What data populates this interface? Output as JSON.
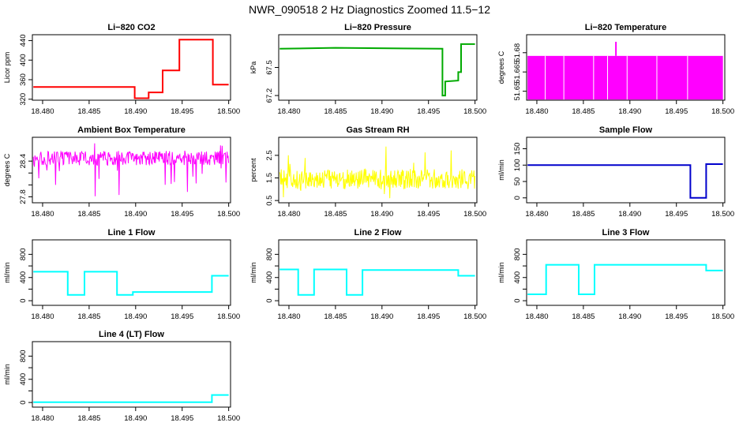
{
  "figure": {
    "title": "NWR_090518  2 Hz Diagnostics Zoomed 11.5−12"
  },
  "chart_data": [
    {
      "type": "line",
      "title": "Li−820 CO2",
      "ylabel": "Licor ppm",
      "xlabel": "",
      "color": "#ff0000",
      "xlim": [
        18.4789,
        18.5002
      ],
      "ylim": [
        318,
        452
      ],
      "xticks": [
        18.48,
        18.485,
        18.49,
        18.495,
        18.5
      ],
      "xtick_labels": [
        "18.480",
        "18.485",
        "18.490",
        "18.495",
        "18.500"
      ],
      "yticks": [
        320,
        360,
        400,
        440
      ],
      "ytick_labels": [
        "320",
        "360",
        "400",
        "440"
      ],
      "x": [
        18.479,
        18.48,
        18.485,
        18.4899,
        18.4899,
        18.4914,
        18.4914,
        18.4929,
        18.4929,
        18.4947,
        18.4947,
        18.4983,
        18.4983,
        18.5
      ],
      "y": [
        345,
        345,
        345,
        345,
        322,
        322,
        334,
        334,
        379,
        379,
        442,
        442,
        350,
        350
      ]
    },
    {
      "type": "line",
      "title": "Li−820 Pressure",
      "ylabel": "kPa",
      "xlabel": "",
      "color": "#00aa00",
      "xlim": [
        18.4789,
        18.5002
      ],
      "ylim": [
        67.15,
        67.85
      ],
      "xticks": [
        18.48,
        18.485,
        18.49,
        18.495,
        18.5
      ],
      "xtick_labels": [
        "18.480",
        "18.485",
        "18.490",
        "18.495",
        "18.500"
      ],
      "yticks": [
        67.2,
        67.5
      ],
      "ytick_labels": [
        "67.2",
        "67.5"
      ],
      "x": [
        18.479,
        18.485,
        18.4965,
        18.4965,
        18.4968,
        18.4968,
        18.4982,
        18.4982,
        18.4985,
        18.4985,
        18.5
      ],
      "y": [
        67.7,
        67.71,
        67.7,
        67.2,
        67.2,
        67.35,
        67.36,
        67.45,
        67.45,
        67.75,
        67.75
      ]
    },
    {
      "type": "area",
      "title": "Li−820 Temperature",
      "ylabel": "degrees C",
      "xlabel": "",
      "color": "#ff00ff",
      "xlim": [
        18.4789,
        18.5002
      ],
      "ylim": [
        51.643,
        51.694
      ],
      "xticks": [
        18.48,
        18.485,
        18.49,
        18.495,
        18.5
      ],
      "xtick_labels": [
        "18.480",
        "18.485",
        "18.490",
        "18.495",
        "18.500"
      ],
      "yticks": [
        51.65,
        51.665,
        51.68
      ],
      "ytick_labels": [
        "51.65",
        "51.665",
        "51.68"
      ],
      "band": [
        51.6435,
        51.6775
      ],
      "spike": [
        18.4885,
        51.6885
      ]
    },
    {
      "type": "line",
      "title": "Ambient Box Temperature",
      "ylabel": "degrees C",
      "xlabel": "",
      "color": "#ff00ff",
      "xlim": [
        18.4789,
        18.5002
      ],
      "ylim": [
        27.7,
        28.8
      ],
      "xticks": [
        18.48,
        18.485,
        18.49,
        18.495,
        18.5
      ],
      "xtick_labels": [
        "18.480",
        "18.485",
        "18.490",
        "18.495",
        "18.500"
      ],
      "yticks": [
        27.8,
        28.0,
        28.2,
        28.4
      ],
      "ytick_labels": [
        "27.8",
        "",
        "",
        "28.4"
      ],
      "noise": {
        "center": 28.45,
        "spread": 0.12,
        "min": 27.75,
        "max": 28.72
      }
    },
    {
      "type": "line",
      "title": "Gas Stream RH",
      "ylabel": "percent",
      "xlabel": "",
      "color": "#ffff00",
      "xlim": [
        18.4789,
        18.5002
      ],
      "ylim": [
        0.4,
        3.3
      ],
      "xticks": [
        18.48,
        18.485,
        18.49,
        18.495,
        18.5
      ],
      "xtick_labels": [
        "18.480",
        "18.485",
        "18.490",
        "18.495",
        "18.500"
      ],
      "yticks": [
        0.5,
        1.5,
        2.5
      ],
      "ytick_labels": [
        "0.5",
        "1.5",
        "2.5"
      ],
      "noise": {
        "center": 1.45,
        "spread": 0.45,
        "min": 0.5,
        "max": 3.1
      }
    },
    {
      "type": "line",
      "title": "Sample Flow",
      "ylabel": "ml/min",
      "xlabel": "",
      "color": "#0000cc",
      "xlim": [
        18.4789,
        18.5002
      ],
      "ylim": [
        -15,
        185
      ],
      "xticks": [
        18.48,
        18.485,
        18.49,
        18.495,
        18.5
      ],
      "xtick_labels": [
        "18.480",
        "18.485",
        "18.490",
        "18.495",
        "18.500"
      ],
      "yticks": [
        0,
        50,
        100,
        150
      ],
      "ytick_labels": [
        "0",
        "50",
        "100",
        "150"
      ],
      "x": [
        18.479,
        18.4965,
        18.4965,
        18.4982,
        18.4982,
        18.5
      ],
      "y": [
        100,
        100,
        0,
        0,
        103,
        103
      ]
    },
    {
      "type": "line",
      "title": "Line 1 Flow",
      "ylabel": "ml/min",
      "xlabel": "",
      "color": "#00ffff",
      "xlim": [
        18.4789,
        18.5002
      ],
      "ylim": [
        -80,
        1050
      ],
      "xticks": [
        18.48,
        18.485,
        18.49,
        18.495,
        18.5
      ],
      "xtick_labels": [
        "18.480",
        "18.485",
        "18.490",
        "18.495",
        "18.500"
      ],
      "yticks": [
        0,
        200,
        400,
        600,
        800
      ],
      "ytick_labels": [
        "0",
        "",
        "400",
        "",
        "800"
      ],
      "x": [
        18.479,
        18.4827,
        18.4827,
        18.4845,
        18.4845,
        18.488,
        18.488,
        18.4897,
        18.4897,
        18.4982,
        18.4982,
        18.5
      ],
      "y": [
        500,
        500,
        100,
        100,
        500,
        500,
        100,
        100,
        150,
        150,
        430,
        430
      ]
    },
    {
      "type": "line",
      "title": "Line 2 Flow",
      "ylabel": "ml/min",
      "xlabel": "",
      "color": "#00ffff",
      "xlim": [
        18.4789,
        18.5002
      ],
      "ylim": [
        -80,
        1050
      ],
      "xticks": [
        18.48,
        18.485,
        18.49,
        18.495,
        18.5
      ],
      "xtick_labels": [
        "18.480",
        "18.485",
        "18.490",
        "18.495",
        "18.500"
      ],
      "yticks": [
        0,
        200,
        400,
        600,
        800
      ],
      "ytick_labels": [
        "0",
        "",
        "400",
        "",
        "800"
      ],
      "x": [
        18.479,
        18.481,
        18.481,
        18.4827,
        18.4827,
        18.4862,
        18.4862,
        18.4879,
        18.4879,
        18.4982,
        18.4982,
        18.5
      ],
      "y": [
        540,
        540,
        100,
        100,
        540,
        540,
        100,
        100,
        530,
        530,
        430,
        430
      ]
    },
    {
      "type": "line",
      "title": "Line 3 Flow",
      "ylabel": "ml/min",
      "xlabel": "",
      "color": "#00ffff",
      "xlim": [
        18.4789,
        18.5002
      ],
      "ylim": [
        -80,
        1050
      ],
      "xticks": [
        18.48,
        18.485,
        18.49,
        18.495,
        18.5
      ],
      "xtick_labels": [
        "18.480",
        "18.485",
        "18.490",
        "18.495",
        "18.500"
      ],
      "yticks": [
        0,
        200,
        400,
        600,
        800
      ],
      "ytick_labels": [
        "0",
        "",
        "400",
        "",
        "800"
      ],
      "x": [
        18.479,
        18.481,
        18.481,
        18.4845,
        18.4845,
        18.4862,
        18.4862,
        18.4982,
        18.4982,
        18.5
      ],
      "y": [
        110,
        110,
        620,
        620,
        110,
        110,
        620,
        620,
        520,
        520
      ]
    },
    {
      "type": "line",
      "title": "Line 4 (LT) Flow",
      "ylabel": "ml/min",
      "xlabel": "",
      "color": "#00ffff",
      "xlim": [
        18.4789,
        18.5002
      ],
      "ylim": [
        -80,
        1050
      ],
      "xticks": [
        18.48,
        18.485,
        18.49,
        18.495,
        18.5
      ],
      "xtick_labels": [
        "18.480",
        "18.485",
        "18.490",
        "18.495",
        "18.500"
      ],
      "yticks": [
        0,
        200,
        400,
        600,
        800
      ],
      "ytick_labels": [
        "0",
        "",
        "400",
        "",
        "800"
      ],
      "x": [
        18.479,
        18.4982,
        18.4982,
        18.5
      ],
      "y": [
        5,
        5,
        130,
        130
      ]
    }
  ]
}
